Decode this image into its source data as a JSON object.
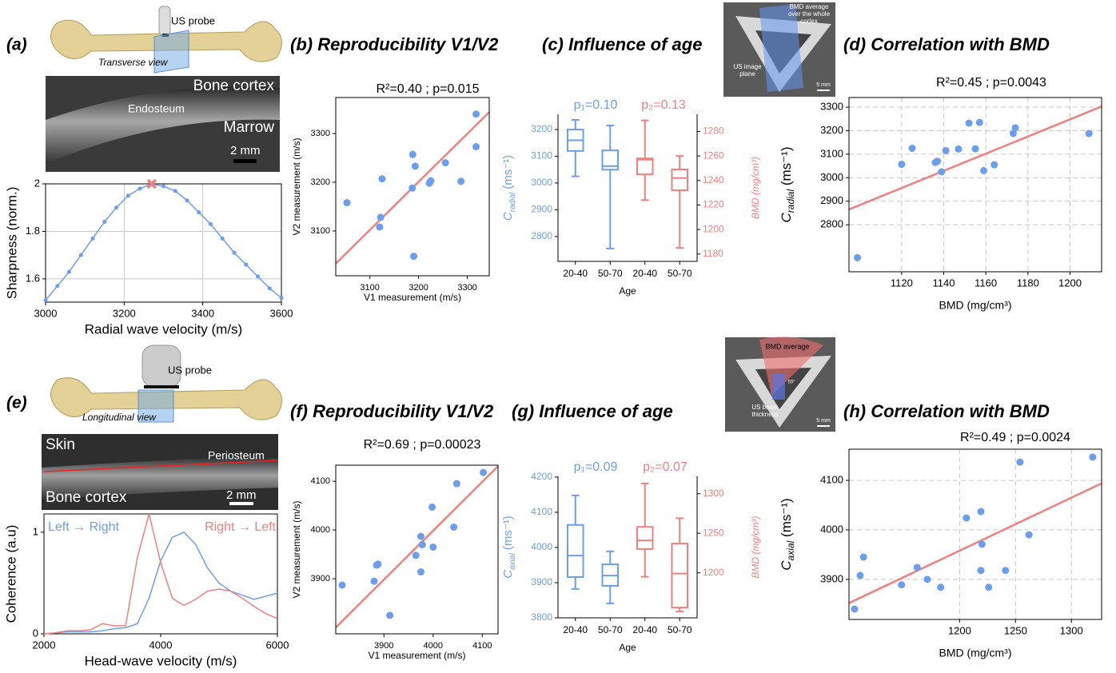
{
  "chart_data": [
    {
      "type": "line",
      "panel": "(a)",
      "annotations": [
        "US probe",
        "Transverse view",
        "Bone cortex",
        "Endosteum",
        "Marrow",
        "2 mm"
      ],
      "xlabel": "Radial wave velocity (m/s)",
      "ylabel": "Sharpness (norm.)",
      "x": [
        3000,
        3030,
        3060,
        3090,
        3120,
        3150,
        3180,
        3210,
        3240,
        3270,
        3300,
        3330,
        3360,
        3390,
        3420,
        3450,
        3480,
        3510,
        3540,
        3570,
        3600
      ],
      "series": [
        {
          "color": "#6d9eeb",
          "values": [
            1.51,
            1.57,
            1.63,
            1.7,
            1.77,
            1.84,
            1.9,
            1.95,
            1.98,
            2.0,
            1.99,
            1.97,
            1.93,
            1.88,
            1.83,
            1.77,
            1.71,
            1.66,
            1.61,
            1.56,
            1.52
          ]
        }
      ],
      "markers": true,
      "peak": {
        "x": 3270,
        "y": 2,
        "color": "#f08080"
      },
      "xlim": [
        3000,
        3600
      ],
      "ylim": [
        1.502,
        2.0
      ],
      "xticks": [
        3000,
        3200,
        3400,
        3600
      ],
      "yticks": [
        1.6,
        1.8,
        2
      ],
      "grid": true,
      "grid_style": "solid"
    },
    {
      "type": "scatter",
      "title": "(b) Reproducibility V1/V2",
      "stat": "R²=0.40 ; p=0.015",
      "xlabel": "V1 measurement (m/s)",
      "ylabel": "V2 measurement (m/s)",
      "x": [
        3053,
        3120,
        3122,
        3125,
        3187,
        3188,
        3190,
        3193,
        3222,
        3225,
        3255,
        3287,
        3318,
        3318
      ],
      "values": [
        3158,
        3108,
        3128,
        3207,
        3188,
        3257,
        3048,
        3233,
        3198,
        3203,
        3240,
        3202,
        3273,
        3340
      ],
      "color": "#6d9eeb",
      "fit": {
        "x": [
          3030,
          3345
        ],
        "values": [
          3033,
          3344
        ],
        "color": "#f08080"
      },
      "xlim": [
        3030,
        3345
      ],
      "ylim": [
        3008,
        3374
      ],
      "xticks": [
        3100,
        3200,
        3300
      ],
      "yticks": [
        3100,
        3200,
        3300
      ],
      "grid": false
    },
    {
      "type": "box",
      "title": "(c) Influence of age",
      "p_labels": [
        "p₁=0.10",
        "p₂=0.13"
      ],
      "annotations": [
        "BMD average",
        "over the whole",
        "cortex",
        "US image",
        "plane",
        "5 mm"
      ],
      "categories": [
        "20-40",
        "50-70",
        "20-40",
        "50-70"
      ],
      "xlabel": "Age",
      "ylabel": "C",
      "ylabel_sub": "radial",
      "ylabel_unit": " (ms⁻¹)",
      "y2label": "BMD (mg/cm³)",
      "ylim": [
        2707,
        3257
      ],
      "yticks": [
        2800,
        2900,
        3000,
        3100,
        3200
      ],
      "y2lim": [
        1174,
        1294
      ],
      "y2ticks": [
        1180,
        1200,
        1220,
        1240,
        1260,
        1280
      ],
      "series": [
        {
          "color": "#6d9eeb",
          "boxes": [
            {
              "whislo": 3025,
              "q1": 3120,
              "med": 3160,
              "q3": 3200,
              "whishi": 3236
            },
            {
              "whislo": 2755,
              "q1": 3050,
              "med": 3063,
              "q3": 3122,
              "whishi": 3215
            },
            null,
            null
          ]
        },
        {
          "axis": "y2",
          "color": "#f08080",
          "boxes": [
            null,
            null,
            {
              "whislo": 1224,
              "q1": 1245,
              "med": 1257,
              "q3": 1258,
              "whishi": 1289
            },
            {
              "whislo": 1185,
              "q1": 1232,
              "med": 1242,
              "q3": 1249,
              "whishi": 1260
            }
          ]
        }
      ]
    },
    {
      "type": "scatter",
      "title": "(d) Correlation with BMD",
      "stat": "R²=0.45 ; p=0.0043",
      "xlabel": "BMD (mg/cm³)",
      "ylabel": "C",
      "ylabel_sub": "radial",
      "ylabel_unit": " (ms⁻¹)",
      "x": [
        1099,
        1120,
        1125,
        1136,
        1137,
        1139,
        1141,
        1147,
        1152,
        1155,
        1157,
        1159,
        1164,
        1173,
        1174,
        1209
      ],
      "values": [
        2660,
        3057,
        3125,
        3065,
        3070,
        3025,
        3115,
        3122,
        3232,
        3123,
        3235,
        3030,
        3055,
        3188,
        3212,
        3188
      ],
      "color": "#6d9eeb",
      "fit": {
        "x": [
          1095,
          1215
        ],
        "values": [
          2865,
          3303
        ],
        "color": "#f08080"
      },
      "xlim": [
        1095,
        1215
      ],
      "ylim": [
        2600,
        3341
      ],
      "xticks": [
        1120,
        1140,
        1160,
        1180,
        1200
      ],
      "yticks": [
        2800,
        2900,
        3000,
        3100,
        3200,
        3300
      ],
      "grid": true,
      "grid_style": "dashed"
    },
    {
      "type": "line",
      "panel": "(e)",
      "annotations": [
        "US probe",
        "Longitudinal view",
        "Skin",
        "Periosteum",
        "Bone cortex",
        "2 mm"
      ],
      "xlabel": "Head-wave velocity (m/s)",
      "ylabel": "Coherence (a.u)",
      "x": [
        2000,
        2200,
        2400,
        2600,
        2800,
        3000,
        3200,
        3400,
        3600,
        3800,
        4000,
        4200,
        4400,
        4600,
        4800,
        5000,
        5200,
        5400,
        5600,
        5800,
        6000
      ],
      "series": [
        {
          "name": "Left → Right",
          "color": "#6d9eeb",
          "values": [
            0,
            0.01,
            0.02,
            0.02,
            0.02,
            0.03,
            0.05,
            0.06,
            0.1,
            0.35,
            0.72,
            0.95,
            1.0,
            0.88,
            0.65,
            0.5,
            0.42,
            0.38,
            0.34,
            0.37,
            0.4
          ]
        },
        {
          "name": "Right → Left",
          "color": "#f08080",
          "values": [
            0,
            0.01,
            0.03,
            0.03,
            0.04,
            0.1,
            0.08,
            0.08,
            0.75,
            1.18,
            0.7,
            0.35,
            0.28,
            0.34,
            0.42,
            0.44,
            0.42,
            0.35,
            0.27,
            0.2,
            0.15
          ]
        }
      ],
      "markers": false,
      "xlim": [
        2000,
        6000
      ],
      "ylim": [
        0,
        1.18
      ],
      "xticks": [
        2000,
        4000,
        6000
      ],
      "yticks": [
        0,
        1
      ],
      "grid": false
    },
    {
      "type": "scatter",
      "title": "(f) Reproducibility V1/V2",
      "stat": "R²=0.69 ; p=0.00023",
      "xlabel": "V1 measurement (m/s)",
      "ylabel": "V2 measurement (m/s)",
      "x": [
        3815,
        3880,
        3885,
        3888,
        3912,
        3965,
        3975,
        3975,
        3978,
        3998,
        4000,
        4042,
        4048,
        4102
      ],
      "values": [
        3887,
        3895,
        3928,
        3930,
        3825,
        3948,
        3987,
        3914,
        3970,
        4047,
        3965,
        4006,
        4095,
        4118
      ],
      "color": "#6d9eeb",
      "fit": {
        "x": [
          3802,
          4132
        ],
        "values": [
          3800,
          4131
        ],
        "color": "#f08080"
      },
      "xlim": [
        3802,
        4132
      ],
      "ylim": [
        3787,
        4133
      ],
      "xticks": [
        3900,
        4000,
        4100
      ],
      "yticks": [
        3900,
        4000,
        4100
      ],
      "grid": false
    },
    {
      "type": "box",
      "title": "(g) Influence of age",
      "p_labels": [
        "p₁=0.09",
        "p₂=0.07"
      ],
      "annotations": [
        "BMD average",
        "50°",
        "US beam",
        "thickness",
        "5 mm"
      ],
      "categories": [
        "20-40",
        "50-70",
        "20-40",
        "50-70"
      ],
      "xlabel": "Age",
      "ylabel": "C",
      "ylabel_sub": "axial",
      "ylabel_unit": " (ms⁻¹)",
      "y2label": "BMD (mg/cm³)",
      "ylim": [
        3800,
        4202
      ],
      "yticks": [
        3800,
        3900,
        4000,
        4100,
        4200
      ],
      "y2lim": [
        1143,
        1322
      ],
      "y2ticks": [
        1200,
        1250,
        1300
      ],
      "series": [
        {
          "color": "#6d9eeb",
          "boxes": [
            {
              "whislo": 3882,
              "q1": 3916,
              "med": 3977,
              "q3": 4064,
              "whishi": 4148
            },
            {
              "whislo": 3841,
              "q1": 3891,
              "med": 3920,
              "q3": 3952,
              "whishi": 3989
            },
            null,
            null
          ]
        },
        {
          "axis": "y2",
          "color": "#f08080",
          "boxes": [
            null,
            null,
            {
              "whislo": 1195,
              "q1": 1230,
              "med": 1241,
              "q3": 1258,
              "whishi": 1313
            },
            {
              "whislo": 1151,
              "q1": 1156,
              "med": 1199,
              "q3": 1237,
              "whishi": 1269
            }
          ]
        }
      ]
    },
    {
      "type": "scatter",
      "title": "(h) Correlation with BMD",
      "stat": "R²=0.49 ; p=0.0024",
      "xlabel": "BMD (mg/cm³)",
      "ylabel": "C",
      "ylabel_sub": "axial",
      "ylabel_unit": " (ms⁻¹)",
      "x": [
        1106,
        1111,
        1114,
        1148,
        1162,
        1171,
        1183,
        1206,
        1219,
        1220,
        1219,
        1226,
        1241,
        1254,
        1262,
        1319
      ],
      "values": [
        3840,
        3908,
        3945,
        3889,
        3924,
        3900,
        3884,
        4024,
        4037,
        3971,
        3918,
        3884,
        3918,
        4137,
        3990,
        4147
      ],
      "color": "#6d9eeb",
      "fit": {
        "x": [
          1101,
          1327
        ],
        "values": [
          3852,
          4094
        ],
        "color": "#f08080"
      },
      "xlim": [
        1101,
        1327
      ],
      "ylim": [
        3819,
        4163
      ],
      "xticks": [
        1200,
        1250,
        1300
      ],
      "yticks": [
        3900,
        4000,
        4100
      ],
      "grid": true,
      "grid_style": "dashed"
    }
  ]
}
